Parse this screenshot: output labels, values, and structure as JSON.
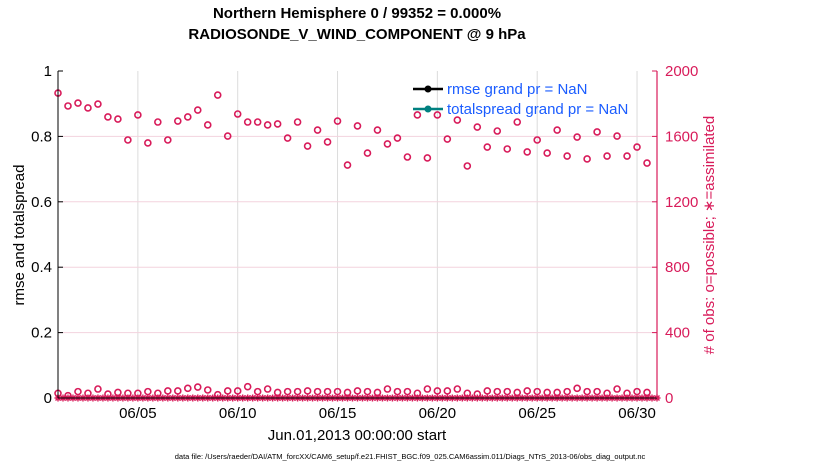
{
  "chart_data": {
    "type": "scatter",
    "title": [
      "Northern Hemisphere 0 / 99352 = 0.000%",
      "RADIOSONDE_V_WIND_COMPONENT @ 9 hPa"
    ],
    "xlabel": "Jun.01,2013 00:00:00 start",
    "ylabel_left": "rmse and totalspread",
    "ylabel_right": "# of obs: o=possible; ∗=assimilated",
    "footnote": "data file: /Users/raeder/DAI/ATM_forcXX/CAM6_setup/f.e21.FHIST_BGC.f09_025.CAM6assim.011/Diags_NTrS_2013-06/obs_diag_output.nc",
    "xlim_days": [
      0,
      30
    ],
    "x_ticks": [
      {
        "day": 4,
        "label": "06/05"
      },
      {
        "day": 9,
        "label": "06/10"
      },
      {
        "day": 14,
        "label": "06/15"
      },
      {
        "day": 19,
        "label": "06/20"
      },
      {
        "day": 24,
        "label": "06/25"
      },
      {
        "day": 29,
        "label": "06/30"
      }
    ],
    "ylim_left": [
      0,
      1
    ],
    "y_ticks_left": [
      "0",
      "0.2",
      "0.4",
      "0.6",
      "0.8",
      "1"
    ],
    "ylim_right": [
      0,
      2000
    ],
    "y_ticks_right": [
      "0",
      "400",
      "800",
      "1200",
      "1600",
      "2000"
    ],
    "grid": true,
    "legend": {
      "placement": "top-right",
      "entries": [
        {
          "label": "rmse grand pr = NaN",
          "color": "#000000"
        },
        {
          "label": "totalspread grand pr = NaN",
          "color": "#008080"
        }
      ]
    },
    "legend_text_color": "#1a5cff",
    "obs_color": "#d81b5a",
    "series": [
      {
        "name": "possible (region 1)",
        "marker": "o",
        "time_step_days": 0.5,
        "values": [
          1865,
          1786,
          1804,
          1774,
          1798,
          1719,
          1706,
          1578,
          1731,
          1560,
          1688,
          1578,
          1694,
          1719,
          1761,
          1670,
          1853,
          1602,
          1737,
          1688,
          1688,
          1670,
          1676,
          1590,
          1688,
          1541,
          1639,
          1566,
          1694,
          1425,
          1664,
          1498,
          1639,
          1554,
          1590,
          1474,
          1731,
          1468,
          1731,
          1584,
          1700,
          1419,
          1657,
          1535,
          1633,
          1523,
          1688,
          1505,
          1578,
          1498,
          1639,
          1480,
          1596,
          1462,
          1627,
          1480,
          1602,
          1480,
          1535,
          1437
        ]
      },
      {
        "name": "possible (region 2)",
        "marker": "o",
        "time_step_days": 0.5,
        "values": [
          29,
          14,
          39,
          29,
          55,
          24,
          34,
          29,
          29,
          39,
          29,
          43,
          43,
          59,
          67,
          49,
          20,
          43,
          43,
          69,
          39,
          55,
          34,
          39,
          39,
          43,
          39,
          39,
          39,
          34,
          43,
          39,
          34,
          55,
          39,
          39,
          29,
          55,
          43,
          43,
          55,
          29,
          24,
          43,
          39,
          39,
          34,
          43,
          39,
          34,
          34,
          39,
          59,
          39,
          39,
          29,
          55,
          29,
          39,
          34
        ]
      },
      {
        "name": "assimilated",
        "marker": "*",
        "time_step_days": 0.25,
        "count": 121,
        "value": 0
      },
      {
        "name": "rmse",
        "values": []
      },
      {
        "name": "totalspread",
        "values": []
      }
    ]
  }
}
